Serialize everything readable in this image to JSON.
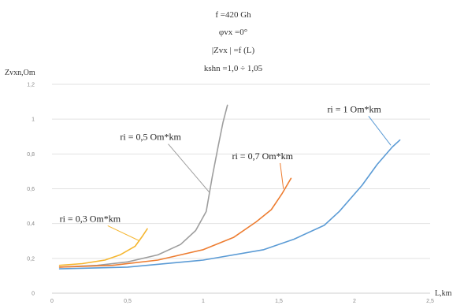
{
  "chart_data": {
    "type": "line",
    "header_lines": [
      "f =420 Gh",
      "φvx =0°",
      "|Zvx | =f (L)",
      "kshn =1,0 ÷ 1,05"
    ],
    "xlabel": "L,km",
    "ylabel": "Zvxn,Om",
    "xlim": [
      0,
      2.5
    ],
    "ylim": [
      0,
      1.2
    ],
    "x_ticks": [
      "0",
      "0,5",
      "1",
      "1,5",
      "2",
      "2,5"
    ],
    "x_tick_values": [
      0,
      0.5,
      1,
      1.5,
      2,
      2.5
    ],
    "y_ticks": [
      "0",
      "0,2",
      "0,4",
      "0,6",
      "0,8",
      "1",
      "1,2"
    ],
    "y_tick_values": [
      0,
      0.2,
      0.4,
      0.6,
      0.8,
      1.0,
      1.2
    ],
    "grid": true,
    "series": [
      {
        "name": "ri = 0,3 Om*km",
        "color": "#f5b630",
        "x": [
          0.05,
          0.2,
          0.35,
          0.45,
          0.55,
          0.6,
          0.63
        ],
        "y": [
          0.16,
          0.17,
          0.19,
          0.22,
          0.27,
          0.33,
          0.37
        ]
      },
      {
        "name": "ri = 0,5 Om*km",
        "color": "#9e9e9e",
        "x": [
          0.05,
          0.3,
          0.5,
          0.7,
          0.85,
          0.95,
          1.02,
          1.06,
          1.1,
          1.13,
          1.16
        ],
        "y": [
          0.15,
          0.16,
          0.18,
          0.22,
          0.28,
          0.36,
          0.47,
          0.67,
          0.85,
          0.98,
          1.08
        ]
      },
      {
        "name": "ri = 0,7 Om*km",
        "color": "#ed7d31",
        "x": [
          0.05,
          0.4,
          0.7,
          1.0,
          1.2,
          1.35,
          1.45,
          1.52,
          1.58
        ],
        "y": [
          0.15,
          0.16,
          0.19,
          0.25,
          0.32,
          0.41,
          0.48,
          0.57,
          0.66
        ]
      },
      {
        "name": "ri = 1 Om*km",
        "color": "#5b9bd5",
        "x": [
          0.05,
          0.5,
          1.0,
          1.4,
          1.6,
          1.8,
          1.9,
          2.05,
          2.15,
          2.25,
          2.3
        ],
        "y": [
          0.14,
          0.15,
          0.19,
          0.25,
          0.31,
          0.39,
          0.47,
          0.62,
          0.74,
          0.84,
          0.88
        ]
      }
    ],
    "annotations": [
      {
        "text": "ri = 0,3 Om*km",
        "series": 0,
        "label_x": 0.05,
        "label_y": 0.41,
        "arrow_to_x": 0.58,
        "arrow_to_y": 0.3
      },
      {
        "text": "ri = 0,5 Om*km",
        "series": 1,
        "label_x": 0.45,
        "label_y": 0.88,
        "arrow_to_x": 1.04,
        "arrow_to_y": 0.58
      },
      {
        "text": "ri = 0,7 Om*km",
        "series": 2,
        "label_x": 1.19,
        "label_y": 0.77,
        "arrow_to_x": 1.53,
        "arrow_to_y": 0.6
      },
      {
        "text": "ri = 1 Om*km",
        "series": 3,
        "label_x": 1.82,
        "label_y": 1.04,
        "arrow_to_x": 2.24,
        "arrow_to_y": 0.85
      }
    ]
  }
}
